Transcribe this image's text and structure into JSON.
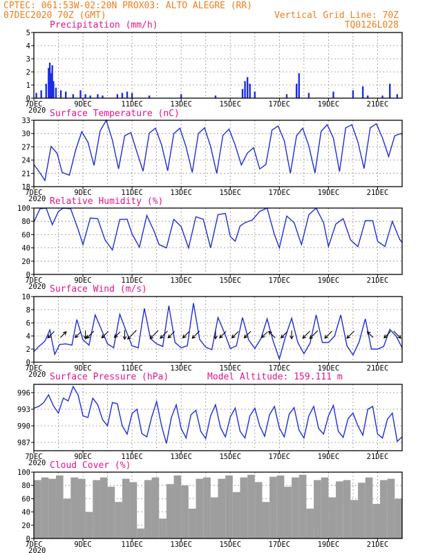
{
  "header": {
    "line1": "CPTEC:  061:53W-02:20N  PROX03: ALTO ALEGRE (RR)",
    "line2_left": "07DEC2020 70Z (GMT)",
    "line2_right": "Vertical Grid Line: 70Z",
    "line3_right": "TQ0126L028"
  },
  "colors": {
    "header": "#f07d1a",
    "title": "#e0148c",
    "series": "#1e2bd6",
    "bars": "#1a2be8",
    "cloud": "#9e9e9e"
  },
  "x_axis": {
    "tick_labels": [
      "7DEC",
      "9DEC",
      "11DEC",
      "13DEC",
      "15DEC",
      "17DEC",
      "19DEC",
      "21DEC"
    ],
    "year_label": "2020",
    "day_range": [
      7,
      22
    ]
  },
  "panels": {
    "precip": {
      "title": "Precipitation  (mm/h)",
      "y_ticks": [
        "0",
        "1",
        "2",
        "3",
        "4",
        "5"
      ]
    },
    "temp": {
      "title": "Surface Temperature (nC)",
      "y_ticks": [
        "18",
        "21",
        "24",
        "27",
        "30",
        "33"
      ]
    },
    "rh": {
      "title": "Relative Humidity  (%)",
      "y_ticks": [
        "0",
        "20",
        "40",
        "60",
        "80",
        "100"
      ]
    },
    "wind": {
      "title": "Surface Wind  (m/s)",
      "y_ticks": [
        "0",
        "2",
        "4",
        "6",
        "8",
        "10"
      ]
    },
    "press": {
      "title": "Surface Pressure (hPa)",
      "model_alt": "Model Altitude: 159.111 m",
      "y_ticks": [
        "987",
        "990",
        "993",
        "996"
      ]
    },
    "cloud": {
      "title": "Cloud Cover  (%)",
      "y_ticks": [
        "0",
        "20",
        "40",
        "60",
        "80",
        "100"
      ]
    }
  },
  "chart_data": [
    {
      "type": "bar",
      "title": "Precipitation  (mm/h)",
      "ylim": [
        0,
        5
      ],
      "x": [
        7.1,
        7.3,
        7.5,
        7.6,
        7.65,
        7.7,
        7.75,
        7.8,
        7.9,
        8.1,
        8.3,
        8.6,
        8.9,
        9.1,
        9.3,
        9.6,
        9.8,
        10.4,
        10.6,
        10.8,
        11.0,
        11.7,
        13.0,
        14.4,
        15.5,
        15.6,
        15.7,
        15.8,
        16.0,
        17.3,
        17.7,
        17.8,
        18.2,
        19.2,
        20.0,
        20.4,
        20.6,
        21.2,
        21.5,
        21.8
      ],
      "values": [
        0.4,
        0.6,
        1.1,
        2.3,
        2.7,
        1.9,
        2.5,
        1.3,
        0.8,
        0.6,
        0.5,
        0.3,
        0.6,
        0.3,
        0.2,
        0.3,
        0.2,
        0.3,
        0.4,
        0.5,
        0.4,
        0.2,
        0.3,
        0.2,
        0.7,
        1.3,
        1.6,
        1.1,
        0.5,
        0.3,
        1.1,
        1.9,
        0.4,
        0.5,
        0.6,
        0.9,
        0.2,
        0.2,
        1.1,
        0.3
      ]
    },
    {
      "type": "line",
      "title": "Surface Temperature (nC)",
      "ylim": [
        18,
        33
      ],
      "x": [
        7.0,
        7.2,
        7.45,
        7.7,
        7.95,
        8.15,
        8.45,
        8.7,
        8.95,
        9.2,
        9.45,
        9.7,
        9.95,
        10.2,
        10.45,
        10.7,
        10.95,
        11.2,
        11.45,
        11.7,
        11.95,
        12.2,
        12.45,
        12.7,
        12.95,
        13.2,
        13.45,
        13.7,
        13.95,
        14.2,
        14.45,
        14.7,
        14.95,
        15.2,
        15.45,
        15.7,
        15.95,
        16.2,
        16.45,
        16.7,
        16.95,
        17.2,
        17.45,
        17.7,
        17.95,
        18.2,
        18.45,
        18.7,
        18.95,
        19.2,
        19.45,
        19.7,
        19.95,
        20.2,
        20.45,
        20.7,
        20.95,
        21.2,
        21.45,
        21.7,
        21.95,
        22.0
      ],
      "values": [
        23.0,
        21.5,
        19.4,
        27.1,
        25.5,
        21.2,
        20.6,
        26.2,
        30.4,
        28.1,
        22.8,
        30.6,
        33.0,
        28.5,
        22.0,
        29.5,
        30.2,
        25.8,
        21.5,
        30.1,
        31.2,
        27.5,
        21.6,
        30.0,
        31.2,
        27.0,
        21.2,
        30.0,
        31.3,
        27.1,
        21.0,
        29.6,
        31.0,
        27.4,
        22.9,
        25.6,
        26.8,
        22.0,
        23.0,
        30.8,
        31.7,
        28.4,
        21.0,
        29.5,
        31.2,
        27.2,
        21.1,
        30.5,
        32.0,
        29.0,
        21.4,
        31.3,
        32.0,
        28.1,
        22.1,
        31.3,
        32.2,
        29.0,
        24.8,
        29.5,
        30.0,
        29.7
      ]
    },
    {
      "type": "line",
      "title": "Relative Humidity  (%)",
      "ylim": [
        0,
        100
      ],
      "x": [
        7.0,
        7.25,
        7.5,
        7.75,
        8.0,
        8.2,
        8.5,
        8.8,
        9.0,
        9.3,
        9.6,
        9.9,
        10.2,
        10.5,
        10.8,
        11.0,
        11.3,
        11.6,
        11.9,
        12.1,
        12.4,
        12.7,
        13.0,
        13.3,
        13.6,
        13.9,
        14.2,
        14.5,
        14.8,
        15.0,
        15.2,
        15.4,
        15.6,
        15.9,
        16.2,
        16.5,
        16.8,
        17.0,
        17.3,
        17.6,
        17.9,
        18.2,
        18.5,
        18.8,
        19.0,
        19.3,
        19.6,
        19.9,
        20.2,
        20.5,
        20.8,
        21.0,
        21.3,
        21.6,
        21.9,
        22.0
      ],
      "values": [
        79,
        99,
        100,
        75,
        95,
        100,
        99,
        68,
        45,
        85,
        84,
        52,
        37,
        83,
        83,
        61,
        41,
        89,
        65,
        45,
        40,
        83,
        72,
        40,
        87,
        83,
        40,
        90,
        92,
        57,
        50,
        73,
        78,
        82,
        95,
        100,
        60,
        40,
        88,
        78,
        45,
        90,
        100,
        78,
        42,
        76,
        84,
        52,
        42,
        81,
        81,
        50,
        42,
        80,
        53,
        48
      ]
    },
    {
      "type": "line",
      "title": "Surface Wind  (m/s)",
      "ylim": [
        0,
        10
      ],
      "x": [
        7.0,
        7.2,
        7.45,
        7.65,
        7.85,
        8.05,
        8.3,
        8.55,
        8.75,
        9.0,
        9.25,
        9.5,
        9.75,
        10.0,
        10.25,
        10.5,
        10.75,
        11.0,
        11.25,
        11.5,
        11.75,
        12.0,
        12.25,
        12.5,
        12.75,
        13.0,
        13.25,
        13.5,
        13.75,
        14.0,
        14.25,
        14.5,
        14.75,
        15.0,
        15.25,
        15.5,
        15.75,
        16.0,
        16.25,
        16.5,
        16.75,
        17.0,
        17.25,
        17.5,
        17.75,
        18.0,
        18.25,
        18.5,
        18.75,
        19.0,
        19.25,
        19.5,
        19.75,
        20.0,
        20.25,
        20.5,
        20.75,
        21.0,
        21.25,
        21.5,
        21.75,
        22.0
      ],
      "values": [
        1.6,
        2.4,
        3.2,
        4.9,
        1.2,
        2.7,
        2.8,
        2.6,
        6.5,
        3.4,
        2.6,
        7.2,
        5.0,
        2.8,
        2.2,
        7.3,
        4.8,
        2.5,
        2.2,
        8.2,
        3.6,
        2.8,
        2.4,
        8.6,
        3.0,
        2.2,
        2.5,
        9.0,
        3.5,
        2.3,
        1.9,
        6.8,
        4.6,
        2.1,
        2.5,
        6.8,
        3.4,
        2.1,
        3.6,
        6.6,
        3.2,
        0.5,
        3.9,
        6.7,
        3.0,
        1.3,
        2.9,
        7.2,
        3.0,
        3.0,
        4.0,
        7.2,
        2.5,
        1.1,
        3.1,
        6.6,
        2.0,
        2.0,
        2.4,
        5.0,
        4.0,
        2.2
      ],
      "arrows": [
        {
          "x": 7.7,
          "speed": 2.5,
          "to": "sw"
        },
        {
          "x": 8.2,
          "speed": 2.0,
          "to": "ne"
        },
        {
          "x": 8.8,
          "speed": 2.0,
          "to": "sw"
        },
        {
          "x": 9.1,
          "speed": 2.0,
          "to": "s"
        },
        {
          "x": 9.3,
          "speed": 3.0,
          "to": "sw"
        },
        {
          "x": 9.9,
          "speed": 2.5,
          "to": "sw"
        },
        {
          "x": 10.4,
          "speed": 2.0,
          "to": "sw"
        },
        {
          "x": 10.7,
          "speed": 2.5,
          "to": "s"
        },
        {
          "x": 11.0,
          "speed": 4.0,
          "to": "sw"
        },
        {
          "x": 11.9,
          "speed": 3.5,
          "to": "sw"
        },
        {
          "x": 12.3,
          "speed": 3.0,
          "to": "sw"
        },
        {
          "x": 12.6,
          "speed": 2.5,
          "to": "sw"
        },
        {
          "x": 13.2,
          "speed": 2.5,
          "to": "sw"
        },
        {
          "x": 13.6,
          "speed": 3.0,
          "to": "sw"
        },
        {
          "x": 14.4,
          "speed": 2.0,
          "to": "s"
        },
        {
          "x": 14.7,
          "speed": 2.5,
          "to": "sw"
        },
        {
          "x": 15.2,
          "speed": 2.5,
          "to": "sw"
        },
        {
          "x": 15.7,
          "speed": 2.5,
          "to": "sw"
        },
        {
          "x": 16.4,
          "speed": 2.0,
          "to": "sw"
        },
        {
          "x": 16.7,
          "speed": 2.5,
          "to": "nw"
        },
        {
          "x": 17.2,
          "speed": 2.5,
          "to": "sw"
        },
        {
          "x": 17.5,
          "speed": 2.0,
          "to": "s"
        },
        {
          "x": 18.1,
          "speed": 3.0,
          "to": "sw"
        },
        {
          "x": 18.4,
          "speed": 3.5,
          "to": "sw"
        },
        {
          "x": 19.0,
          "speed": 3.0,
          "to": "sw"
        },
        {
          "x": 19.9,
          "speed": 3.0,
          "to": "sw"
        },
        {
          "x": 20.7,
          "speed": 2.0,
          "to": "nw"
        },
        {
          "x": 21.4,
          "speed": 2.5,
          "to": "sw"
        },
        {
          "x": 21.8,
          "speed": 3.0,
          "to": "se"
        }
      ]
    },
    {
      "type": "line",
      "title": "Surface Pressure (hPa)",
      "ylim": [
        985.5,
        997.5
      ],
      "x": [
        7.0,
        7.2,
        7.4,
        7.6,
        7.8,
        8.0,
        8.2,
        8.4,
        8.6,
        8.8,
        9.0,
        9.2,
        9.4,
        9.6,
        9.8,
        10.0,
        10.2,
        10.4,
        10.6,
        10.8,
        11.0,
        11.2,
        11.4,
        11.6,
        11.8,
        12.0,
        12.2,
        12.4,
        12.6,
        12.8,
        13.0,
        13.2,
        13.4,
        13.6,
        13.8,
        14.0,
        14.2,
        14.4,
        14.6,
        14.8,
        15.0,
        15.2,
        15.4,
        15.6,
        15.8,
        16.0,
        16.2,
        16.4,
        16.6,
        16.8,
        17.0,
        17.2,
        17.4,
        17.6,
        17.8,
        18.0,
        18.2,
        18.4,
        18.6,
        18.8,
        19.0,
        19.2,
        19.4,
        19.6,
        19.8,
        20.0,
        20.2,
        20.4,
        20.6,
        20.8,
        21.0,
        21.2,
        21.4,
        21.6,
        21.8,
        22.0
      ],
      "values": [
        993.2,
        993.5,
        994.2,
        995.6,
        993.6,
        992.3,
        995.0,
        994.5,
        997.1,
        995.6,
        991.8,
        991.5,
        995.0,
        993.8,
        991.1,
        990.0,
        994.2,
        994.0,
        990.0,
        988.5,
        992.2,
        993.0,
        988.6,
        988.0,
        991.6,
        994.4,
        990.0,
        986.8,
        991.5,
        993.8,
        989.5,
        987.8,
        992.0,
        992.8,
        989.0,
        987.7,
        991.8,
        993.8,
        989.7,
        988.0,
        991.6,
        993.2,
        989.0,
        987.8,
        991.8,
        993.2,
        990.0,
        988.1,
        992.0,
        993.5,
        989.6,
        988.0,
        992.1,
        993.3,
        989.2,
        987.8,
        991.8,
        993.5,
        989.5,
        988.5,
        991.8,
        993.7,
        989.0,
        987.9,
        991.3,
        992.3,
        990.0,
        988.3,
        993.0,
        993.5,
        988.5,
        987.8,
        991.2,
        992.3,
        987.2,
        988.0
      ]
    },
    {
      "type": "bar",
      "title": "Cloud Cover  (%)",
      "ylim": [
        0,
        100
      ],
      "x": [
        7.0,
        7.3,
        7.6,
        7.9,
        8.2,
        8.5,
        8.8,
        9.1,
        9.4,
        9.7,
        10.0,
        10.3,
        10.6,
        10.9,
        11.2,
        11.5,
        11.8,
        12.1,
        12.4,
        12.7,
        13.0,
        13.3,
        13.6,
        13.9,
        14.2,
        14.5,
        14.8,
        15.1,
        15.4,
        15.7,
        16.0,
        16.3,
        16.6,
        16.9,
        17.2,
        17.5,
        17.8,
        18.1,
        18.4,
        18.7,
        19.0,
        19.3,
        19.6,
        19.9,
        20.2,
        20.5,
        20.8,
        21.1,
        21.4,
        21.7
      ],
      "values": [
        88,
        92,
        90,
        95,
        60,
        92,
        90,
        40,
        88,
        92,
        78,
        55,
        90,
        85,
        15,
        88,
        92,
        30,
        82,
        95,
        80,
        45,
        90,
        92,
        62,
        90,
        95,
        70,
        92,
        96,
        85,
        55,
        93,
        95,
        78,
        92,
        96,
        45,
        88,
        92,
        62,
        86,
        88,
        58,
        84,
        92,
        52,
        88,
        90,
        60
      ]
    }
  ]
}
